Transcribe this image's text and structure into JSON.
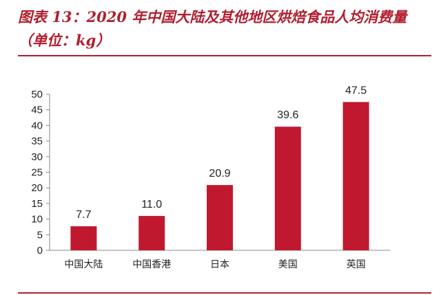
{
  "header": {
    "title": "图表 13：2020 年中国大陆及其他地区烘焙食品人均消费量（单位：kg）"
  },
  "colors": {
    "bar": "#c0192f",
    "accent": "#b01f2e",
    "axis": "#888888"
  },
  "chart_data": {
    "type": "bar",
    "categories": [
      "中国大陆",
      "中国香港",
      "日本",
      "美国",
      "英国"
    ],
    "values": [
      7.7,
      11.0,
      20.9,
      39.6,
      47.5
    ],
    "value_labels": [
      "7.7",
      "11.0",
      "20.9",
      "39.6",
      "47.5"
    ],
    "yticks": [
      "0",
      "5",
      "10",
      "15",
      "20",
      "25",
      "30",
      "35",
      "40",
      "45",
      "50"
    ],
    "ylim": [
      0,
      50
    ],
    "grid": false,
    "legend": "none"
  }
}
